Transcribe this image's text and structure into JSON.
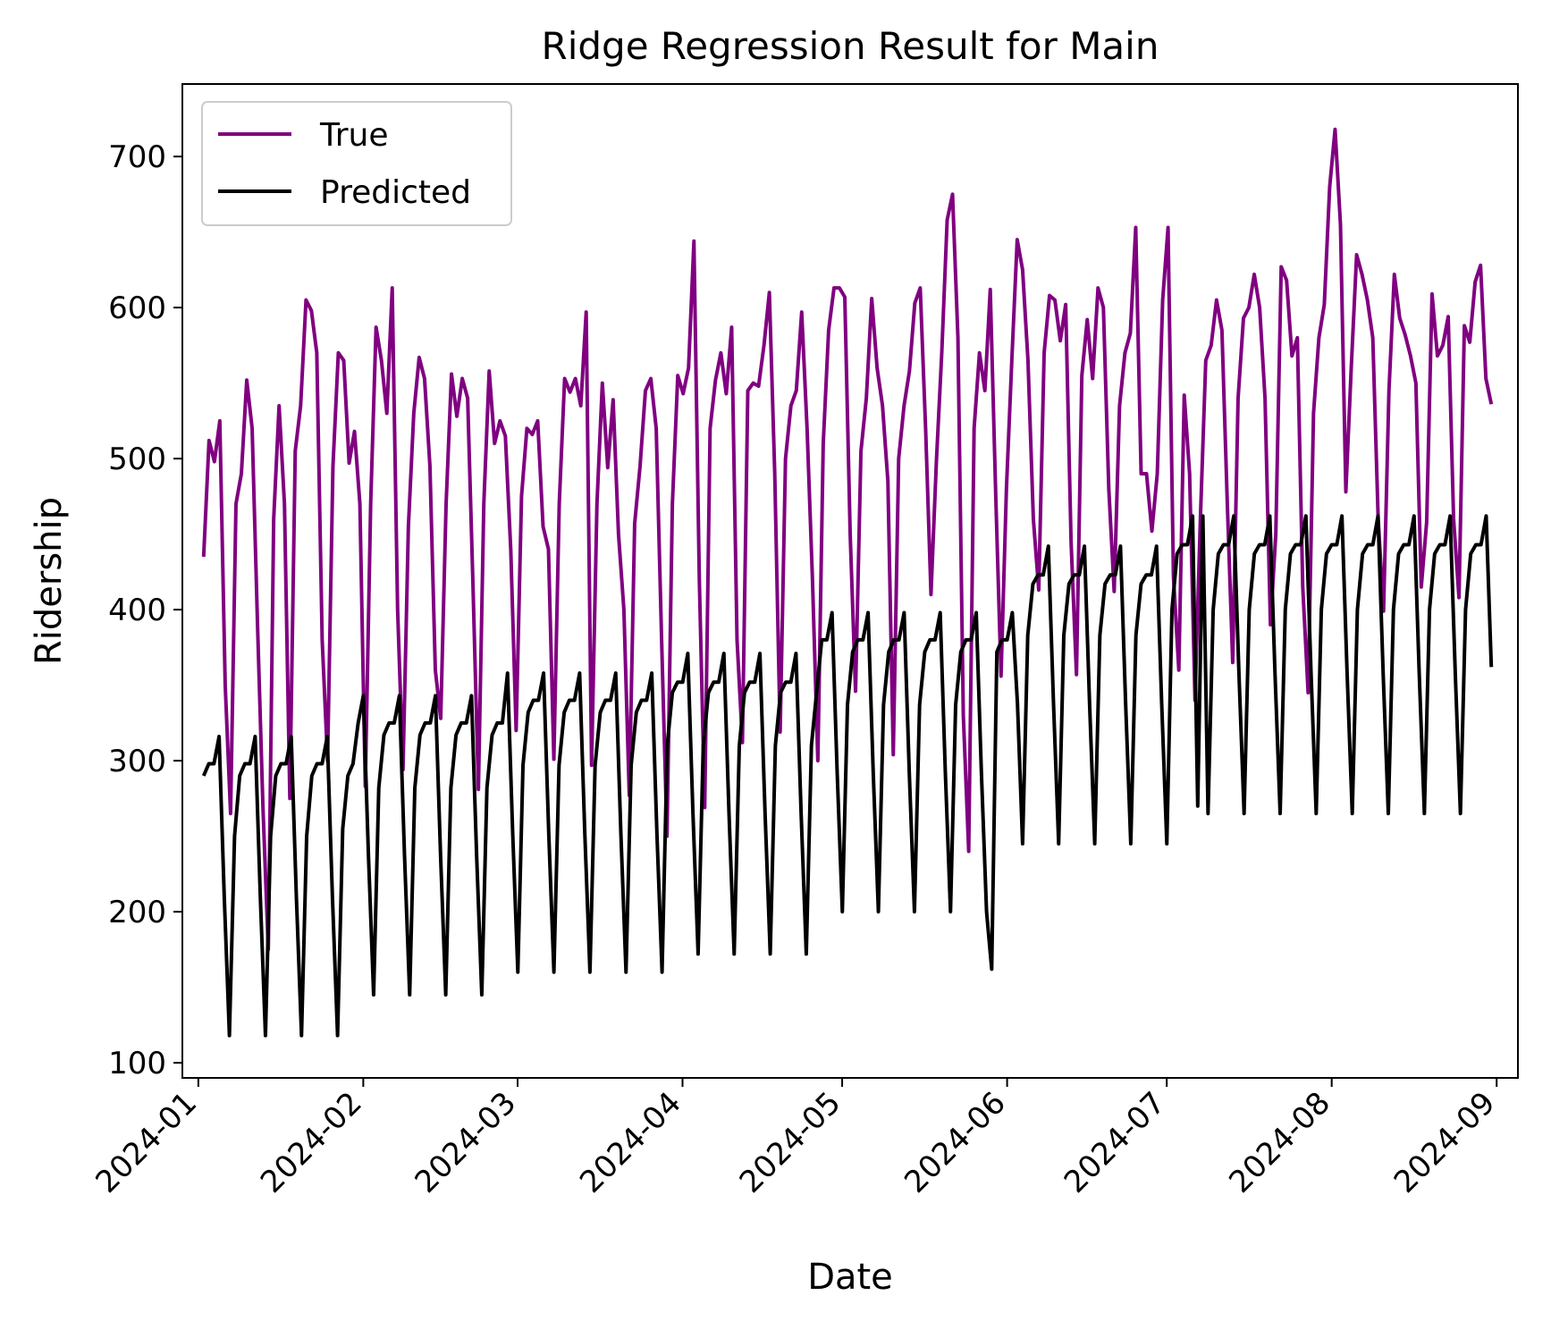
{
  "chart_data": {
    "type": "line",
    "title": "Ridge Regression Result for Main",
    "xlabel": "Date",
    "ylabel": "Ridership",
    "xlim": [
      "2023-12-29",
      "2024-09-05"
    ],
    "ylim": [
      90,
      748
    ],
    "xticks": [
      "2024-01-01",
      "2024-02-01",
      "2024-03-01",
      "2024-04-01",
      "2024-05-01",
      "2024-06-01",
      "2024-07-01",
      "2024-08-01",
      "2024-09-01"
    ],
    "xtick_labels": [
      "2024-01",
      "2024-02",
      "2024-03",
      "2024-04",
      "2024-05",
      "2024-06",
      "2024-07",
      "2024-08",
      "2024-09"
    ],
    "yticks": [
      100,
      200,
      300,
      400,
      500,
      600,
      700
    ],
    "grid": false,
    "legend_position": "upper-left",
    "x_start": "2024-01-02",
    "x_end": "2024-08-31",
    "series": [
      {
        "name": "True",
        "color": "#800080",
        "values": [
          435,
          512,
          498,
          525,
          350,
          265,
          470,
          490,
          552,
          520,
          390,
          270,
          175,
          460,
          535,
          470,
          275,
          505,
          535,
          605,
          598,
          570,
          380,
          300,
          495,
          570,
          565,
          497,
          518,
          470,
          283,
          470,
          587,
          565,
          530,
          613,
          400,
          294,
          455,
          530,
          567,
          553,
          495,
          360,
          328,
          470,
          556,
          528,
          553,
          540,
          415,
          281,
          470,
          558,
          510,
          525,
          515,
          440,
          320,
          475,
          520,
          516,
          525,
          455,
          440,
          301,
          470,
          553,
          544,
          553,
          535,
          597,
          297,
          470,
          550,
          494,
          539,
          450,
          400,
          277,
          457,
          495,
          545,
          553,
          520,
          380,
          250,
          470,
          555,
          543,
          560,
          644,
          420,
          269,
          520,
          552,
          570,
          543,
          587,
          380,
          312,
          545,
          550,
          548,
          575,
          610,
          490,
          319,
          500,
          535,
          545,
          597,
          520,
          420,
          300,
          510,
          585,
          613,
          613,
          607,
          450,
          346,
          505,
          540,
          606,
          560,
          535,
          485,
          304,
          500,
          535,
          558,
          603,
          613,
          520,
          410,
          498,
          570,
          658,
          675,
          580,
          330,
          240,
          520,
          570,
          545,
          612,
          478,
          356,
          480,
          565,
          645,
          625,
          565,
          460,
          413,
          570,
          608,
          605,
          578,
          602,
          445,
          357,
          555,
          592,
          553,
          613,
          600,
          480,
          412,
          535,
          570,
          583,
          653,
          490,
          490,
          452,
          490,
          605,
          653,
          422,
          360,
          542,
          490,
          340,
          460,
          565,
          575,
          605,
          585,
          470,
          365,
          540,
          593,
          600,
          622,
          600,
          540,
          390,
          450,
          627,
          618,
          568,
          580,
          415,
          345,
          530,
          580,
          602,
          680,
          718,
          655,
          478,
          560,
          635,
          622,
          605,
          580,
          460,
          399,
          545,
          622,
          593,
          582,
          568,
          550,
          415,
          458,
          609,
          568,
          575,
          594,
          460,
          408,
          588,
          577,
          617,
          628,
          553,
          536
        ]
      },
      {
        "name": "Predicted",
        "color": "#000000",
        "values": [
          290,
          298,
          298,
          316,
          210,
          118,
          250,
          290,
          298,
          298,
          316,
          210,
          118,
          250,
          290,
          298,
          298,
          316,
          210,
          118,
          250,
          290,
          298,
          298,
          316,
          210,
          118,
          255,
          290,
          298,
          325,
          343,
          237,
          145,
          282,
          317,
          325,
          325,
          343,
          237,
          145,
          282,
          317,
          325,
          325,
          343,
          237,
          145,
          282,
          317,
          325,
          325,
          343,
          237,
          145,
          282,
          317,
          325,
          325,
          358,
          252,
          160,
          297,
          332,
          340,
          340,
          358,
          252,
          160,
          297,
          332,
          340,
          340,
          358,
          252,
          160,
          297,
          332,
          340,
          340,
          358,
          252,
          160,
          297,
          332,
          340,
          340,
          358,
          252,
          160,
          310,
          345,
          352,
          352,
          371,
          265,
          172,
          310,
          345,
          352,
          352,
          371,
          265,
          172,
          310,
          345,
          352,
          352,
          371,
          265,
          172,
          310,
          345,
          352,
          352,
          371,
          265,
          172,
          310,
          345,
          380,
          380,
          398,
          292,
          200,
          337,
          372,
          380,
          380,
          398,
          292,
          200,
          337,
          372,
          380,
          380,
          398,
          292,
          200,
          337,
          372,
          380,
          380,
          398,
          292,
          200,
          337,
          372,
          380,
          380,
          398,
          292,
          200,
          162,
          372,
          380,
          380,
          398,
          338,
          245,
          383,
          417,
          423,
          423,
          442,
          338,
          245,
          383,
          417,
          423,
          423,
          442,
          338,
          245,
          383,
          417,
          423,
          423,
          442,
          338,
          245,
          383,
          417,
          423,
          423,
          442,
          338,
          245,
          400,
          437,
          443,
          443,
          462,
          270,
          462,
          265,
          400,
          437,
          443,
          443,
          462,
          358,
          265,
          400,
          437,
          443,
          443,
          462,
          358,
          265,
          400,
          437,
          443,
          443,
          462,
          358,
          265,
          400,
          437,
          443,
          443,
          462,
          358,
          265,
          400,
          437,
          443,
          443,
          462,
          358,
          265,
          400,
          437,
          443,
          443,
          462,
          358,
          265,
          400,
          437,
          443,
          443,
          462,
          358,
          265,
          400,
          437,
          443,
          443,
          462,
          362
        ]
      }
    ]
  }
}
